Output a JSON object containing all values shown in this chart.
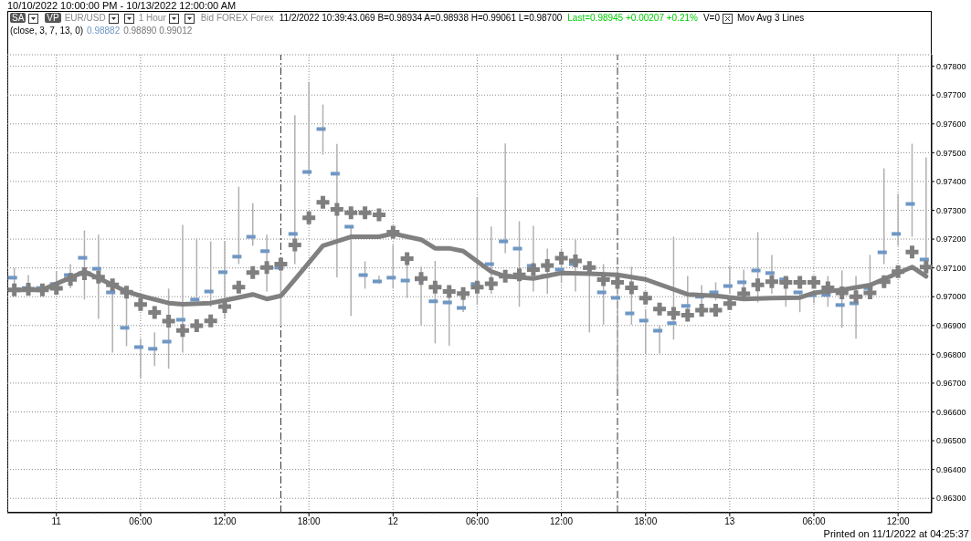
{
  "chart_data": {
    "type": "scatter",
    "title": "10/10/2022 10:00:00 PM - 10/13/2022 12:00:00 AM",
    "annotations": [
      "SA",
      "VP",
      "EUR/USD",
      "1 Hour",
      "Bid FOREX Forex",
      "11/2/2022 10:39:43.069 B=0.98934 A=0.98938 H=0.99061 L=0.98700",
      "Last=0.98945 +0.00207 +0.21%",
      "V=0",
      "Mov Avg 3 Lines",
      "(close, 3, 7, 13, 0)",
      "0.98882",
      "0.98890 0.99012",
      "Printed on 11/1/2022 at 04:25:37"
    ],
    "x": [
      "2022-10-10T21:00",
      "2022-10-10T22:00",
      "2022-10-10T23:00",
      "2022-10-11T00:00",
      "2022-10-11T01:00",
      "2022-10-11T02:00",
      "2022-10-11T03:00",
      "2022-10-11T04:00",
      "2022-10-11T05:00",
      "2022-10-11T06:00",
      "2022-10-11T07:00",
      "2022-10-11T08:00",
      "2022-10-11T09:00",
      "2022-10-11T10:00",
      "2022-10-11T11:00",
      "2022-10-11T12:00",
      "2022-10-11T13:00",
      "2022-10-11T14:00",
      "2022-10-11T15:00",
      "2022-10-11T16:00",
      "2022-10-11T17:00",
      "2022-10-11T18:00",
      "2022-10-11T19:00",
      "2022-10-11T20:00",
      "2022-10-11T21:00",
      "2022-10-11T22:00",
      "2022-10-11T23:00",
      "2022-10-12T00:00",
      "2022-10-12T01:00",
      "2022-10-12T02:00",
      "2022-10-12T03:00",
      "2022-10-12T04:00",
      "2022-10-12T05:00",
      "2022-10-12T06:00",
      "2022-10-12T07:00",
      "2022-10-12T08:00",
      "2022-10-12T09:00",
      "2022-10-12T10:00",
      "2022-10-12T11:00",
      "2022-10-12T12:00",
      "2022-10-12T13:00",
      "2022-10-12T14:00",
      "2022-10-12T15:00",
      "2022-10-12T16:00",
      "2022-10-12T17:00",
      "2022-10-12T18:00",
      "2022-10-12T19:00",
      "2022-10-12T20:00",
      "2022-10-12T21:00",
      "2022-10-12T22:00",
      "2022-10-12T23:00",
      "2022-10-13T00:00",
      "2022-10-13T01:00",
      "2022-10-13T02:00",
      "2022-10-13T03:00",
      "2022-10-13T04:00",
      "2022-10-13T05:00",
      "2022-10-13T06:00",
      "2022-10-13T07:00",
      "2022-10-13T08:00",
      "2022-10-13T09:00",
      "2022-10-13T10:00",
      "2022-10-13T11:00",
      "2022-10-13T12:00",
      "2022-10-13T13:00",
      "2022-10-13T14:00"
    ],
    "series": [
      {
        "color": "#6f97c4",
        "values": [
          0.97066,
          0.9703,
          0.9703,
          0.97044,
          0.97075,
          0.97135,
          0.97097,
          0.97015,
          0.96892,
          0.96825,
          0.96819,
          0.96844,
          0.9692,
          0.9699,
          0.97018,
          0.97085,
          0.97139,
          0.97208,
          0.97158,
          0.97101,
          0.97218,
          0.97433,
          0.97582,
          0.97427,
          0.97243,
          0.97075,
          0.97053,
          0.97066,
          0.97056,
          0.9706,
          0.96984,
          0.9698,
          0.96961,
          0.97044,
          0.97113,
          0.97192,
          0.97167,
          0.97107,
          0.97072,
          0.97094,
          0.97113,
          0.971,
          0.97015,
          0.96996,
          0.96942,
          0.96917,
          0.96882,
          0.96908,
          0.96968,
          0.97,
          0.97015,
          0.97037,
          0.9705,
          0.97091,
          0.97082,
          0.9706,
          0.97015,
          0.97005,
          0.97006,
          0.96971,
          0.96977,
          0.9703,
          0.97154,
          0.97218,
          0.97322,
          0.97129
        ],
        "errors": [
          [
            0.9702,
            0.971
          ],
          [
            0.97015,
            0.97075
          ],
          [
            0.9701,
            0.9704
          ],
          [
            0.9701,
            0.97088
          ],
          [
            0.9703,
            0.97113
          ],
          [
            0.9699,
            0.9723
          ],
          [
            0.96923,
            0.97215
          ],
          [
            0.96806,
            0.97028
          ],
          [
            0.96828,
            0.97018
          ],
          [
            0.96718,
            0.96854
          ],
          [
            0.96759,
            0.96876
          ],
          [
            0.9675,
            0.97028
          ],
          [
            0.96806,
            0.97249
          ],
          [
            0.96987,
            0.97202
          ],
          [
            0.96965,
            0.97192
          ],
          [
            0.96923,
            0.97192
          ],
          [
            0.97113,
            0.97382
          ],
          [
            0.97177,
            0.97325
          ],
          [
            0.97018,
            0.97215
          ],
          [
            0.96901,
            0.97123
          ],
          [
            0.97113,
            0.9763
          ],
          [
            0.9742,
            0.97746
          ],
          [
            0.97493,
            0.97667
          ],
          [
            0.97067,
            0.9753
          ],
          [
            0.96933,
            0.97243
          ],
          [
            0.97028,
            0.97123
          ],
          [
            0.97045,
            0.97073
          ],
          [
            0.97028,
            0.9718
          ],
          [
            0.96996,
            0.97145
          ],
          [
            0.96901,
            0.97104
          ],
          [
            0.96838,
            0.97124
          ],
          [
            0.9683,
            0.97018
          ],
          [
            0.96947,
            0.97018
          ],
          [
            0.96972,
            0.97345
          ],
          [
            0.9701,
            0.97244
          ],
          [
            0.97151,
            0.97532
          ],
          [
            0.96965,
            0.97262
          ],
          [
            0.97018,
            0.97246
          ],
          [
            0.9701,
            0.97167
          ],
          [
            0.9705,
            0.97167
          ],
          [
            0.97018,
            0.97199
          ],
          [
            0.96876,
            0.97107
          ],
          [
            0.96903,
            0.97113
          ],
          [
            0.9668,
            0.97105
          ],
          [
            0.96903,
            0.97104
          ],
          [
            0.96803,
            0.96955
          ],
          [
            0.96803,
            0.96902
          ],
          [
            0.96851,
            0.97208
          ],
          [
            0.96914,
            0.97072
          ],
          [
            0.96955,
            0.9704
          ],
          [
            0.96987,
            0.9705
          ],
          [
            0.9701,
            0.97104
          ],
          [
            0.9701,
            0.97094
          ],
          [
            0.9698,
            0.97224
          ],
          [
            0.9701,
            0.97145
          ],
          [
            0.96965,
            0.9706
          ],
          [
            0.96946,
            0.97018
          ],
          [
            0.96977,
            0.97009
          ],
          [
            0.96965,
            0.97072
          ],
          [
            0.96892,
            0.97091
          ],
          [
            0.96854,
            0.97072
          ],
          [
            0.97018,
            0.97145
          ],
          [
            0.97113,
            0.97446
          ],
          [
            0.97177,
            0.97357
          ],
          [
            0.97208,
            0.97531
          ],
          [
            0.97072,
            0.97484
          ]
        ]
      },
      {
        "marker": "cross",
        "color": "#7f7f7f",
        "values": [
          0.97024,
          0.97026,
          0.97024,
          0.97029,
          0.9706,
          0.9708,
          0.97068,
          0.97041,
          0.97016,
          0.96973,
          0.96945,
          0.96915,
          0.96883,
          0.96899,
          0.96916,
          0.96966,
          0.97033,
          0.97084,
          0.97101,
          0.97113,
          0.9718,
          0.97274,
          0.97328,
          0.97303,
          0.97291,
          0.97291,
          0.97284,
          0.97224,
          0.97132,
          0.97063,
          0.97033,
          0.97018,
          0.97011,
          0.97033,
          0.97045,
          0.97071,
          0.97076,
          0.97094,
          0.97108,
          0.97134,
          0.97124,
          0.97101,
          0.97059,
          0.9705,
          0.97031,
          0.96995,
          0.96957,
          0.96942,
          0.96936,
          0.96953,
          0.96953,
          0.96976,
          0.9701,
          0.97041,
          0.97052,
          0.9705,
          0.9705,
          0.9705,
          0.97031,
          0.97013,
          0.97,
          0.97013,
          0.97052,
          0.97087,
          0.97155,
          0.97103
        ]
      },
      {
        "type": "line",
        "color": "#808080",
        "x": [
          "2022-10-10T21:00",
          "2022-10-10T23:00",
          "2022-10-11T02:00",
          "2022-10-11T05:00",
          "2022-10-11T06:00",
          "2022-10-11T08:00",
          "2022-10-11T09:00",
          "2022-10-11T11:00",
          "2022-10-11T12:00",
          "2022-10-11T14:00",
          "2022-10-11T15:00",
          "2022-10-11T16:00",
          "2022-10-11T17:00",
          "2022-10-11T19:00",
          "2022-10-11T21:00",
          "2022-10-11T23:00",
          "2022-10-12T00:00",
          "2022-10-12T02:00",
          "2022-10-12T03:00",
          "2022-10-12T04:00",
          "2022-10-12T05:00",
          "2022-10-12T07:00",
          "2022-10-12T08:00",
          "2022-10-12T10:00",
          "2022-10-12T12:00",
          "2022-10-12T14:00",
          "2022-10-12T16:00",
          "2022-10-12T18:00",
          "2022-10-12T21:00",
          "2022-10-12T23:00",
          "2022-10-13T01:00",
          "2022-10-13T03:00",
          "2022-10-13T05:00",
          "2022-10-13T06:00",
          "2022-10-13T08:00",
          "2022-10-13T10:00",
          "2022-10-13T12:00",
          "2022-10-13T13:00",
          "2022-10-13T14:00"
        ],
        "values": [
          0.97024,
          0.97024,
          0.97087,
          0.97018,
          0.97003,
          0.96978,
          0.96974,
          0.96978,
          0.96987,
          0.97008,
          0.96992,
          0.97003,
          0.9706,
          0.97177,
          0.97208,
          0.97208,
          0.97219,
          0.97198,
          0.97168,
          0.97168,
          0.97158,
          0.97087,
          0.97071,
          0.97063,
          0.97082,
          0.9708,
          0.97076,
          0.9706,
          0.97008,
          0.97003,
          0.96992,
          0.96995,
          0.96997,
          0.97013,
          0.97024,
          0.9704,
          0.97082,
          0.97103,
          0.97071
        ]
      }
    ],
    "ref_lines": [
      {
        "axis": "x",
        "value": "2022-10-11T16:00",
        "color": "#333333",
        "line_style": "dashed"
      },
      {
        "axis": "x",
        "value": "2022-10-12T16:00",
        "color": "#333333",
        "line_style": "dashed"
      }
    ],
    "xlim": [
      "2022-10-10T20:30",
      "2022-10-13T14:24"
    ],
    "xticks": [
      {
        "value": "2022-10-11T00:00",
        "label": "11"
      },
      {
        "value": "2022-10-11T06:00",
        "label": "06:00"
      },
      {
        "value": "2022-10-11T12:00",
        "label": "12:00"
      },
      {
        "value": "2022-10-11T18:00",
        "label": "18:00"
      },
      {
        "value": "2022-10-12T00:00",
        "label": "12"
      },
      {
        "value": "2022-10-12T06:00",
        "label": "06:00"
      },
      {
        "value": "2022-10-12T12:00",
        "label": "12:00"
      },
      {
        "value": "2022-10-12T18:00",
        "label": "18:00"
      },
      {
        "value": "2022-10-13T00:00",
        "label": "13"
      },
      {
        "value": "2022-10-13T06:00",
        "label": "06:00"
      },
      {
        "value": "2022-10-13T12:00",
        "label": "12:00"
      }
    ],
    "ylim": [
      0.9625,
      0.9784
    ],
    "yticks": [
      {
        "value": 0.963,
        "label": "0.96300"
      },
      {
        "value": 0.964,
        "label": "0.96400"
      },
      {
        "value": 0.965,
        "label": "0.96500"
      },
      {
        "value": 0.966,
        "label": "0.96600"
      },
      {
        "value": 0.967,
        "label": "0.96700"
      },
      {
        "value": 0.968,
        "label": "0.96800"
      },
      {
        "value": 0.969,
        "label": "0.96900"
      },
      {
        "value": 0.97,
        "label": "0.97000"
      },
      {
        "value": 0.971,
        "label": "0.97100"
      },
      {
        "value": 0.972,
        "label": "0.97200"
      },
      {
        "value": 0.973,
        "label": "0.97300"
      },
      {
        "value": 0.974,
        "label": "0.97400"
      },
      {
        "value": 0.975,
        "label": "0.97500"
      },
      {
        "value": 0.976,
        "label": "0.97600"
      },
      {
        "value": 0.977,
        "label": "0.97700"
      },
      {
        "value": 0.978,
        "label": "0.97800"
      }
    ],
    "grid": true
  }
}
